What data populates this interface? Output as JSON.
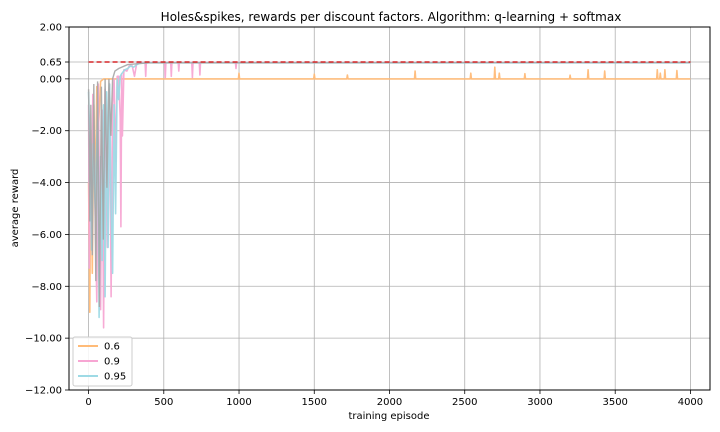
{
  "chart_data": {
    "type": "line",
    "title": "Holes&spikes, rewards per discount factors. Algorithm: q-learning + softmax",
    "xlabel": "training episode",
    "ylabel": "average reward",
    "xlim": [
      -130,
      4130
    ],
    "ylim": [
      -12,
      2
    ],
    "xticks": [
      0,
      500,
      1000,
      1500,
      2000,
      2500,
      3000,
      3500,
      4000
    ],
    "xtick_labels": [
      "0",
      "500",
      "1000",
      "1500",
      "2000",
      "2500",
      "3000",
      "3500",
      "4000"
    ],
    "yticks": [
      2,
      0.65,
      0,
      -2,
      -4,
      -6,
      -8,
      -10,
      -12
    ],
    "ytick_labels": [
      "2.00",
      "0.65",
      "0.00",
      "−2.00",
      "−4.00",
      "−6.00",
      "−8.00",
      "−10.00",
      "−12.00"
    ],
    "grid": true,
    "legend_position": "lower-left",
    "reference_line": {
      "y": 0.65,
      "x": [
        0,
        4000
      ],
      "color": "#d62728",
      "style": "dashed"
    },
    "series": [
      {
        "name": "0.6",
        "color": "#ffbb78",
        "base": 0.0,
        "early": [
          [
            0,
            -4.0
          ],
          [
            8,
            -9.0
          ],
          [
            15,
            -2.0
          ],
          [
            25,
            -7.5
          ],
          [
            35,
            -1.0
          ],
          [
            45,
            -4.5
          ],
          [
            55,
            -0.3
          ],
          [
            65,
            -2.0
          ],
          [
            80,
            -0.1
          ],
          [
            100,
            0.0
          ]
        ],
        "spikes": [
          [
            1000,
            0.22
          ],
          [
            1500,
            0.18
          ],
          [
            1720,
            0.15
          ],
          [
            2170,
            0.3
          ],
          [
            2540,
            0.22
          ],
          [
            2700,
            0.45
          ],
          [
            2730,
            0.22
          ],
          [
            2900,
            0.2
          ],
          [
            3200,
            0.14
          ],
          [
            3320,
            0.35
          ],
          [
            3430,
            0.3
          ],
          [
            3780,
            0.35
          ],
          [
            3800,
            0.22
          ],
          [
            3830,
            0.35
          ],
          [
            3910,
            0.32
          ]
        ]
      },
      {
        "name": "0.9",
        "color": "#f7a6d3",
        "base": 0.63,
        "early": [
          [
            0,
            -1.0
          ],
          [
            5,
            -7.3
          ],
          [
            12,
            -2.0
          ],
          [
            20,
            -6.2
          ],
          [
            28,
            -0.6
          ],
          [
            40,
            -3.8
          ],
          [
            55,
            -8.6
          ],
          [
            65,
            -0.2
          ],
          [
            80,
            -8.9
          ],
          [
            90,
            -1.2
          ],
          [
            100,
            -9.6
          ],
          [
            110,
            -0.4
          ],
          [
            125,
            -6.5
          ],
          [
            140,
            -0.2
          ],
          [
            150,
            -8.4
          ],
          [
            160,
            -1.0
          ],
          [
            170,
            0.0
          ],
          [
            180,
            -3.2
          ],
          [
            190,
            0.1
          ],
          [
            200,
            0.1
          ],
          [
            210,
            -1.5
          ],
          [
            215,
            -5.7
          ],
          [
            220,
            0.2
          ],
          [
            225,
            -2.2
          ],
          [
            235,
            0.35
          ],
          [
            255,
            0.3
          ],
          [
            270,
            0.5
          ],
          [
            290,
            0.5
          ],
          [
            305,
            0.1
          ],
          [
            320,
            0.6
          ],
          [
            345,
            0.63
          ]
        ],
        "dips": [
          [
            380,
            0.1
          ],
          [
            510,
            0.05
          ],
          [
            550,
            0.1
          ],
          [
            600,
            0.3
          ],
          [
            690,
            0.05
          ],
          [
            740,
            0.15
          ],
          [
            980,
            0.4
          ]
        ]
      },
      {
        "name": "0.95",
        "color": "#9edae5",
        "base": 0.62,
        "early": [
          [
            0,
            -0.5
          ],
          [
            10,
            -3.0
          ],
          [
            20,
            -6.6
          ],
          [
            30,
            -2.5
          ],
          [
            45,
            -5.0
          ],
          [
            60,
            -1.0
          ],
          [
            70,
            -9.2
          ],
          [
            80,
            -3.0
          ],
          [
            90,
            -7.0
          ],
          [
            100,
            -1.0
          ],
          [
            110,
            -8.4
          ],
          [
            120,
            -0.5
          ],
          [
            130,
            -6.5
          ],
          [
            140,
            -0.2
          ],
          [
            150,
            -5.0
          ],
          [
            160,
            -7.5
          ],
          [
            170,
            -1.0
          ],
          [
            180,
            -5.2
          ],
          [
            190,
            0.0
          ],
          [
            200,
            -0.8
          ],
          [
            210,
            0.1
          ],
          [
            220,
            0.2
          ],
          [
            240,
            0.35
          ],
          [
            260,
            0.4
          ],
          [
            280,
            0.5
          ],
          [
            300,
            0.45
          ],
          [
            320,
            0.55
          ],
          [
            340,
            0.6
          ],
          [
            400,
            0.62
          ]
        ]
      }
    ],
    "overlap_color": "#a5a5a5"
  }
}
